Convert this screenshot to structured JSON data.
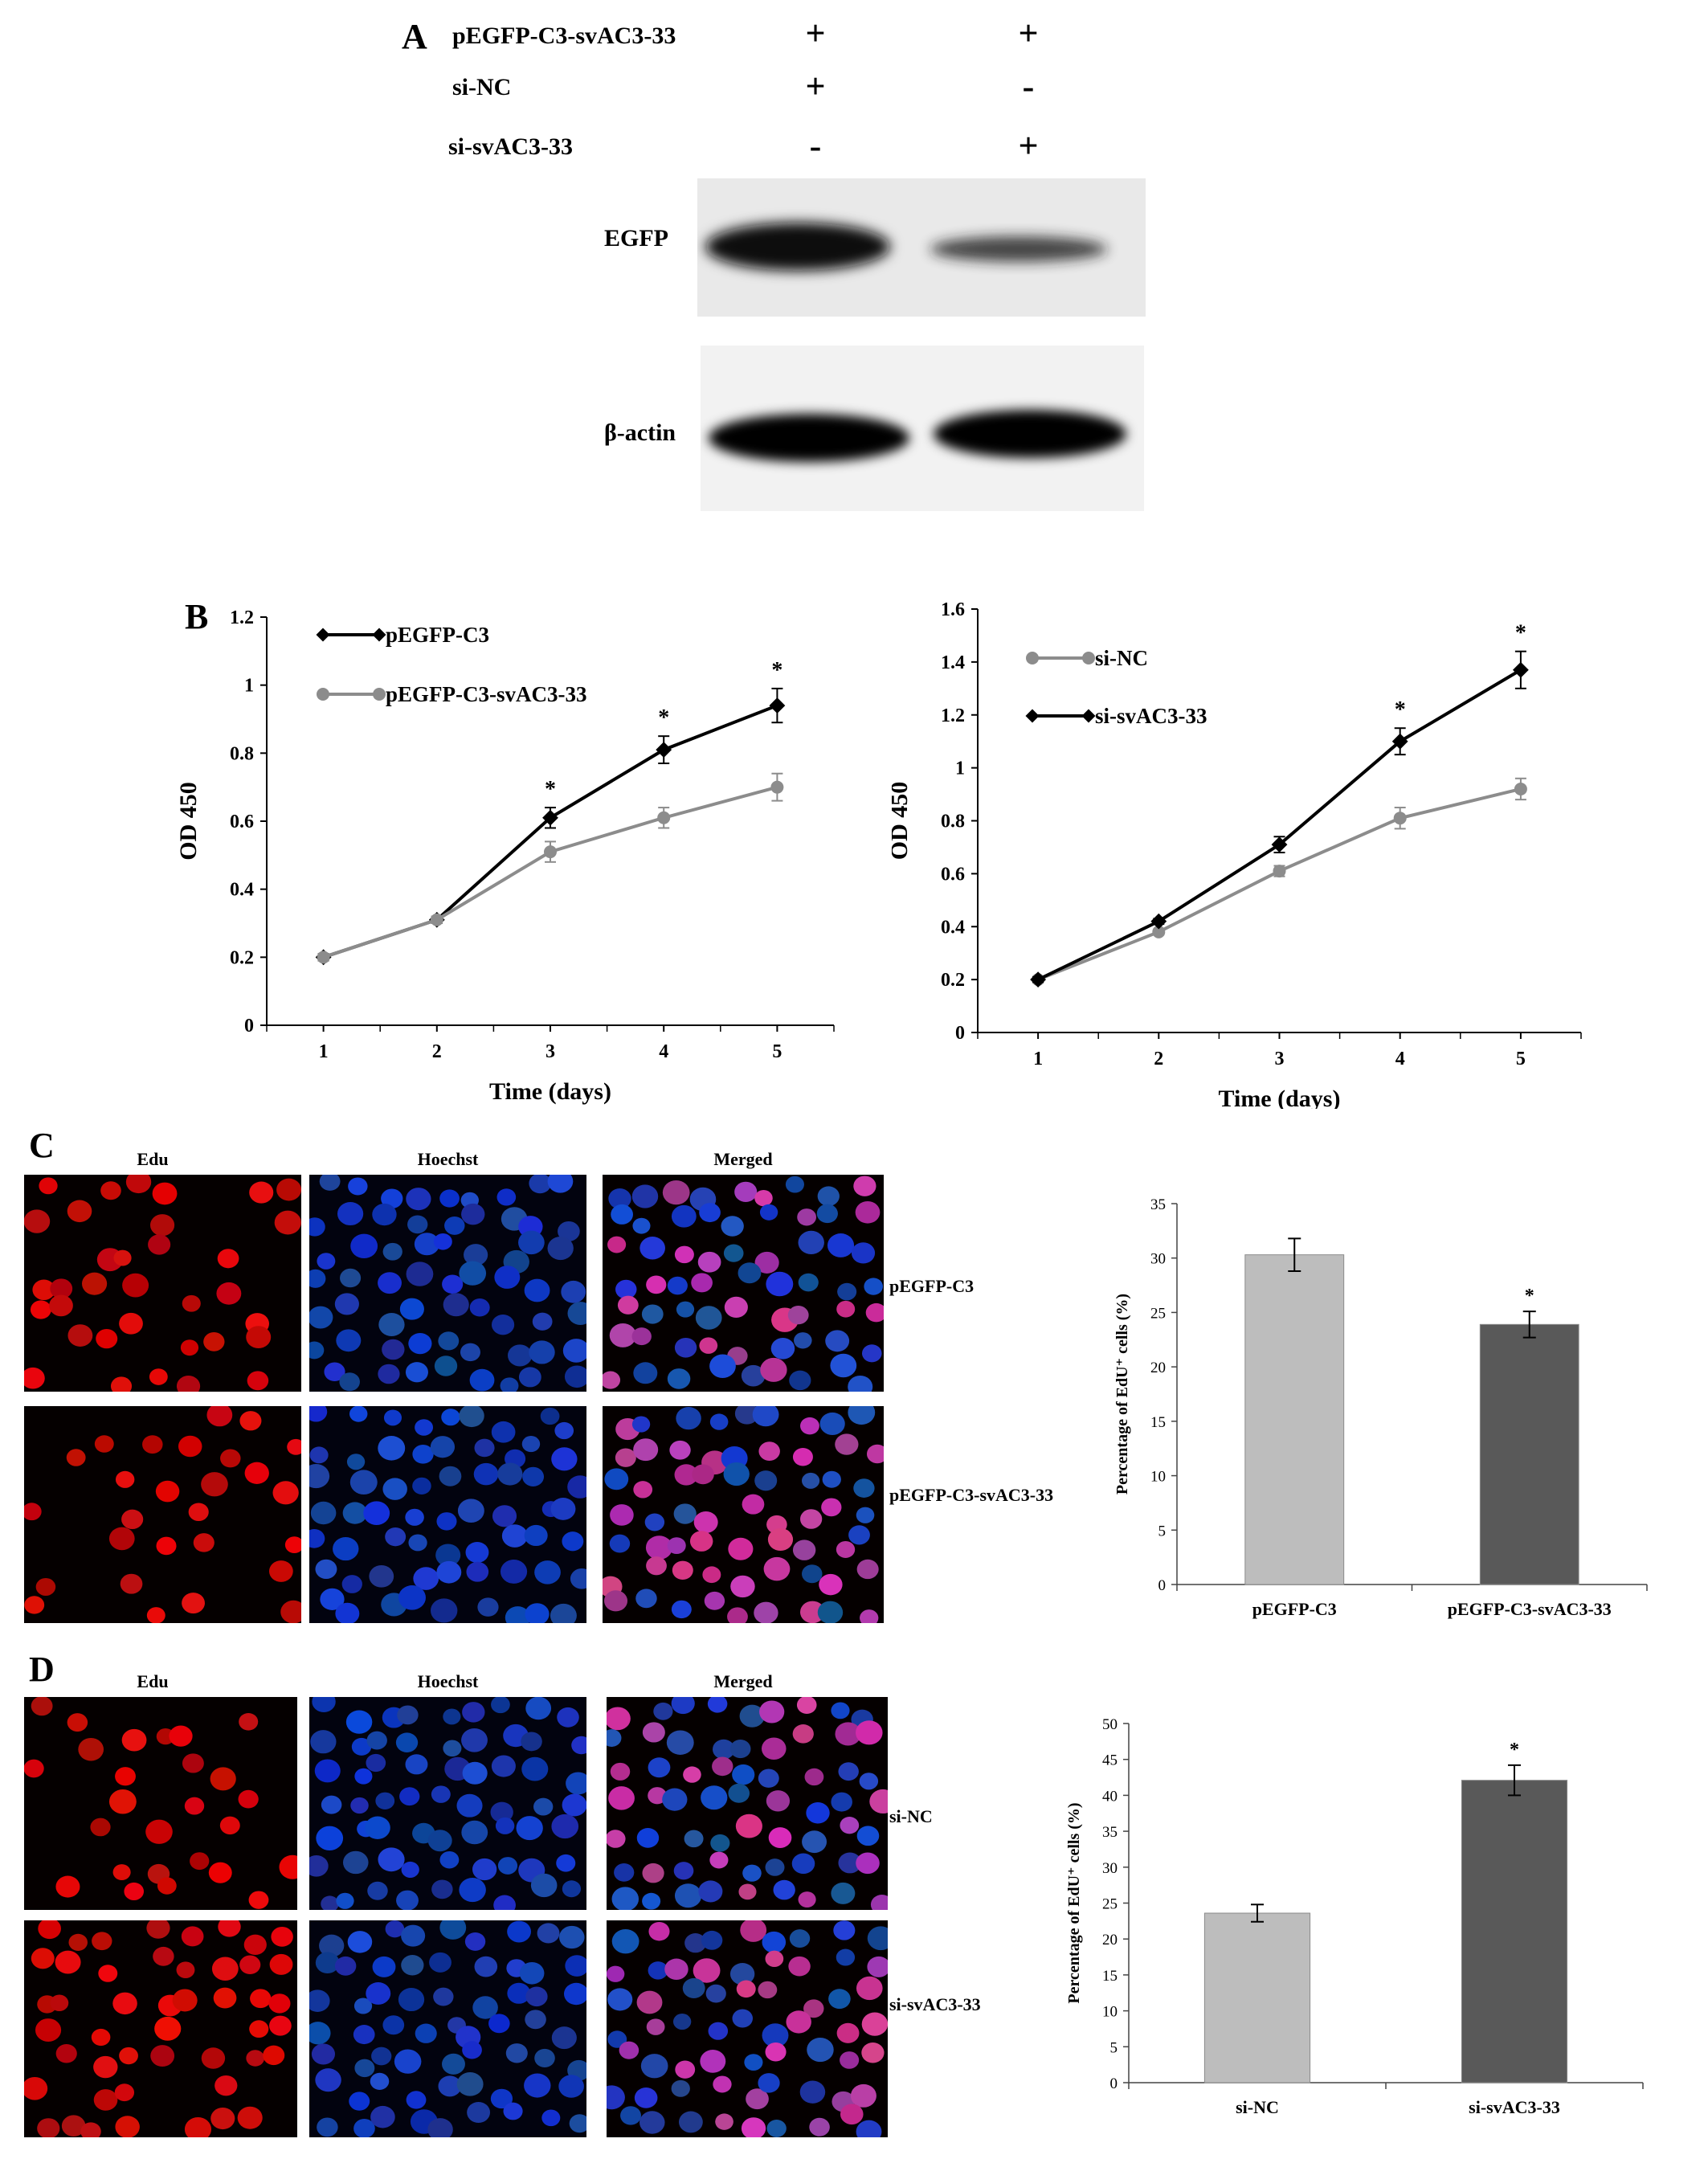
{
  "panel_a": {
    "letter": "A",
    "conditions": [
      {
        "label": "pEGFP-C3-svAC3-33",
        "lane1": "+",
        "lane2": "+"
      },
      {
        "label": "si-NC",
        "lane1": "+",
        "lane2": "-"
      },
      {
        "label": "si-svAC3-33",
        "lane1": "-",
        "lane2": "+"
      }
    ],
    "blots": [
      {
        "label": "EGFP",
        "lane_intensity": [
          1.0,
          0.45
        ]
      },
      {
        "label": "β-actin",
        "lane_intensity": [
          1.0,
          1.0
        ]
      }
    ]
  },
  "panel_b": {
    "letter": "B"
  },
  "panel_c": {
    "letter": "C",
    "columns": [
      "Edu",
      "Hoechst",
      "Merged"
    ],
    "rows": [
      "pEGFP-C3",
      "pEGFP-C3-svAC3-33"
    ]
  },
  "panel_d": {
    "letter": "D",
    "columns": [
      "Edu",
      "Hoechst",
      "Merged"
    ],
    "rows": [
      "si-NC",
      "si-svAC3-33"
    ]
  },
  "chart_data": [
    {
      "type": "line",
      "id": "b_left",
      "x": [
        1,
        2,
        3,
        4,
        5
      ],
      "xlabel": "Time (days)",
      "ylabel": "OD 450",
      "ylim": [
        0,
        1.2
      ],
      "yticks": [
        "0",
        "0.2",
        "0.4",
        "0.6",
        "0.8",
        "1",
        "1.2"
      ],
      "series": [
        {
          "name": "pEGFP-C3",
          "color": "#000000",
          "marker": "diamond",
          "values": [
            0.2,
            0.31,
            0.61,
            0.81,
            0.94
          ],
          "errors": [
            0.01,
            0.01,
            0.03,
            0.04,
            0.05
          ]
        },
        {
          "name": "pEGFP-C3-svAC3-33",
          "color": "#8c8c8c",
          "marker": "circle",
          "values": [
            0.2,
            0.31,
            0.51,
            0.61,
            0.7
          ],
          "errors": [
            0.01,
            0.01,
            0.03,
            0.03,
            0.04
          ]
        }
      ],
      "significance": [
        {
          "x": 3,
          "label": "*"
        },
        {
          "x": 4,
          "label": "*"
        },
        {
          "x": 5,
          "label": "*"
        }
      ],
      "legend": "top-left"
    },
    {
      "type": "line",
      "id": "b_right",
      "x": [
        1,
        2,
        3,
        4,
        5
      ],
      "xlabel": "Time (days)",
      "ylabel": "OD 450",
      "ylim": [
        0,
        1.6
      ],
      "yticks": [
        "0",
        "0.2",
        "0.4",
        "0.6",
        "0.8",
        "1",
        "1.2",
        "1.4",
        "1.6"
      ],
      "series": [
        {
          "name": "si-NC",
          "color": "#8c8c8c",
          "marker": "circle",
          "values": [
            0.2,
            0.38,
            0.61,
            0.81,
            0.92
          ],
          "errors": [
            0.01,
            0.01,
            0.02,
            0.04,
            0.04
          ]
        },
        {
          "name": "si-svAC3-33",
          "color": "#000000",
          "marker": "diamond",
          "values": [
            0.2,
            0.42,
            0.71,
            1.1,
            1.37
          ],
          "errors": [
            0.01,
            0.01,
            0.03,
            0.05,
            0.07
          ]
        }
      ],
      "significance": [
        {
          "x": 4,
          "label": "*"
        },
        {
          "x": 5,
          "label": "*"
        }
      ],
      "legend": "top-left"
    },
    {
      "type": "bar",
      "id": "c_bar",
      "categories": [
        "pEGFP-C3",
        "pEGFP-C3-svAC3-33"
      ],
      "values": [
        30.3,
        23.9
      ],
      "errors": [
        1.5,
        1.2
      ],
      "colors": [
        "#bdbdbd",
        "#595959"
      ],
      "ylabel": "Percentage of EdU⁺ cells (%)",
      "ylim": [
        0,
        35
      ],
      "yticks": [
        "0",
        "5",
        "10",
        "15",
        "20",
        "25",
        "30",
        "35"
      ],
      "significance": [
        {
          "category": 1,
          "label": "*"
        }
      ]
    },
    {
      "type": "bar",
      "id": "d_bar",
      "categories": [
        "si-NC",
        "si-svAC3-33"
      ],
      "values": [
        23.6,
        42.1
      ],
      "errors": [
        1.2,
        2.1
      ],
      "colors": [
        "#bdbdbd",
        "#595959"
      ],
      "ylabel": "Percentage of EdU⁺ cells (%)",
      "ylim": [
        0,
        50
      ],
      "yticks": [
        "0",
        "5",
        "10",
        "15",
        "20",
        "25",
        "30",
        "35",
        "40",
        "45",
        "50"
      ],
      "significance": [
        {
          "category": 1,
          "label": "*"
        }
      ]
    }
  ]
}
